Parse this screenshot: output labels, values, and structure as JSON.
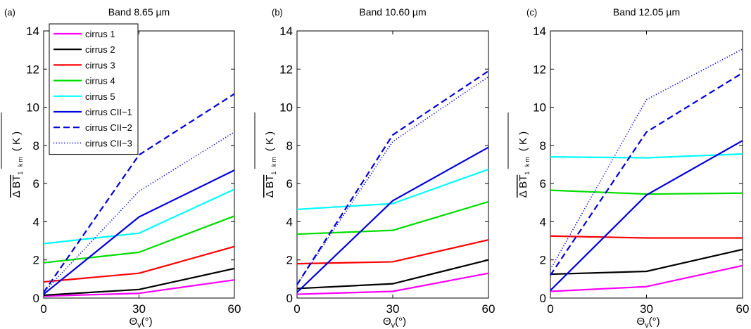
{
  "chart_data": [
    {
      "panel_label": "(a)",
      "type": "line",
      "title": "Band 8.65    µm",
      "xlabel": "Θ",
      "xlabel_subscript": "v",
      "xlabel_suffix": "(°)",
      "ylabel": "Δ BT",
      "ylabel_subscript": "1 km",
      "ylabel_unit": "( K )",
      "x": [
        0,
        30,
        60
      ],
      "xticks": [
        "0",
        "30",
        "60"
      ],
      "yticks": [
        "0",
        "2",
        "4",
        "6",
        "8",
        "10",
        "12",
        "14"
      ],
      "xlim": [
        0,
        60
      ],
      "ylim": [
        0,
        14
      ],
      "grid": false,
      "legend_position": "top-left",
      "series": [
        {
          "name": "cirrus 1",
          "color": "#ff00ff",
          "style": "solid",
          "values": [
            0.1,
            0.25,
            0.95
          ]
        },
        {
          "name": "cirrus 2",
          "color": "#000000",
          "style": "solid",
          "values": [
            0.15,
            0.45,
            1.55
          ]
        },
        {
          "name": "cirrus 3",
          "color": "#ff0000",
          "style": "solid",
          "values": [
            0.85,
            1.3,
            2.7
          ]
        },
        {
          "name": "cirrus 4",
          "color": "#00dd00",
          "style": "solid",
          "values": [
            1.85,
            2.4,
            4.3
          ]
        },
        {
          "name": "cirrus 5",
          "color": "#00ffff",
          "style": "solid",
          "values": [
            2.85,
            3.4,
            5.7
          ]
        },
        {
          "name": "cirrus CII−1",
          "color": "#0000dd",
          "style": "solid",
          "values": [
            0.2,
            4.25,
            6.7
          ]
        },
        {
          "name": "cirrus CII−2",
          "color": "#0000dd",
          "style": "dashed",
          "values": [
            0.3,
            7.5,
            10.7
          ]
        },
        {
          "name": "cirrus CII−3",
          "color": "#0000dd",
          "style": "dotted",
          "values": [
            0.3,
            5.6,
            8.7
          ]
        }
      ]
    },
    {
      "panel_label": "(b)",
      "type": "line",
      "title": "Band 10.60    µm",
      "xlabel": "Θ",
      "xlabel_subscript": "v",
      "xlabel_suffix": "(°)",
      "ylabel": "Δ BT",
      "ylabel_subscript": "1 km",
      "ylabel_unit": "( K )",
      "x": [
        0,
        30,
        60
      ],
      "xticks": [
        "0",
        "30",
        "60"
      ],
      "yticks": [
        "0",
        "2",
        "4",
        "6",
        "8",
        "10",
        "12",
        "14"
      ],
      "xlim": [
        0,
        60
      ],
      "ylim": [
        0,
        14
      ],
      "grid": false,
      "series": [
        {
          "name": "cirrus 1",
          "color": "#ff00ff",
          "style": "solid",
          "values": [
            0.2,
            0.35,
            1.3
          ]
        },
        {
          "name": "cirrus 2",
          "color": "#000000",
          "style": "solid",
          "values": [
            0.5,
            0.75,
            2.0
          ]
        },
        {
          "name": "cirrus 3",
          "color": "#ff0000",
          "style": "solid",
          "values": [
            1.8,
            1.9,
            3.05
          ]
        },
        {
          "name": "cirrus 4",
          "color": "#00dd00",
          "style": "solid",
          "values": [
            3.35,
            3.55,
            5.05
          ]
        },
        {
          "name": "cirrus 5",
          "color": "#00ffff",
          "style": "solid",
          "values": [
            4.65,
            4.95,
            6.75
          ]
        },
        {
          "name": "cirrus CII−1",
          "color": "#0000dd",
          "style": "solid",
          "values": [
            0.3,
            5.1,
            7.9
          ]
        },
        {
          "name": "cirrus CII−2",
          "color": "#0000dd",
          "style": "dashed",
          "values": [
            0.7,
            8.55,
            11.9
          ]
        },
        {
          "name": "cirrus CII−3",
          "color": "#0000dd",
          "style": "dotted",
          "values": [
            0.7,
            8.2,
            11.6
          ]
        }
      ]
    },
    {
      "panel_label": "(c)",
      "type": "line",
      "title": "Band 12.05    µm",
      "xlabel": "Θ",
      "xlabel_subscript": "v",
      "xlabel_suffix": "(°)",
      "ylabel": "Δ BT",
      "ylabel_subscript": "1 km",
      "ylabel_unit": "( K )",
      "x": [
        0,
        30,
        60
      ],
      "xticks": [
        "0",
        "30",
        "60"
      ],
      "yticks": [
        "0",
        "2",
        "4",
        "6",
        "8",
        "10",
        "12",
        "14"
      ],
      "xlim": [
        0,
        60
      ],
      "ylim": [
        0,
        14
      ],
      "grid": false,
      "series": [
        {
          "name": "cirrus 1",
          "color": "#ff00ff",
          "style": "solid",
          "values": [
            0.35,
            0.6,
            1.7
          ]
        },
        {
          "name": "cirrus 2",
          "color": "#000000",
          "style": "solid",
          "values": [
            1.25,
            1.4,
            2.55
          ]
        },
        {
          "name": "cirrus 3",
          "color": "#ff0000",
          "style": "solid",
          "values": [
            3.25,
            3.15,
            3.15
          ]
        },
        {
          "name": "cirrus 4",
          "color": "#00dd00",
          "style": "solid",
          "values": [
            5.65,
            5.45,
            5.5
          ]
        },
        {
          "name": "cirrus 5",
          "color": "#00ffff",
          "style": "solid",
          "values": [
            7.4,
            7.35,
            7.55
          ]
        },
        {
          "name": "cirrus CII−1",
          "color": "#0000dd",
          "style": "solid",
          "values": [
            0.4,
            5.4,
            8.25
          ]
        },
        {
          "name": "cirrus CII−2",
          "color": "#0000dd",
          "style": "dashed",
          "values": [
            1.2,
            8.7,
            11.8
          ]
        },
        {
          "name": "cirrus CII−3",
          "color": "#0000dd",
          "style": "dotted",
          "values": [
            1.5,
            10.4,
            13.05
          ]
        }
      ]
    }
  ]
}
